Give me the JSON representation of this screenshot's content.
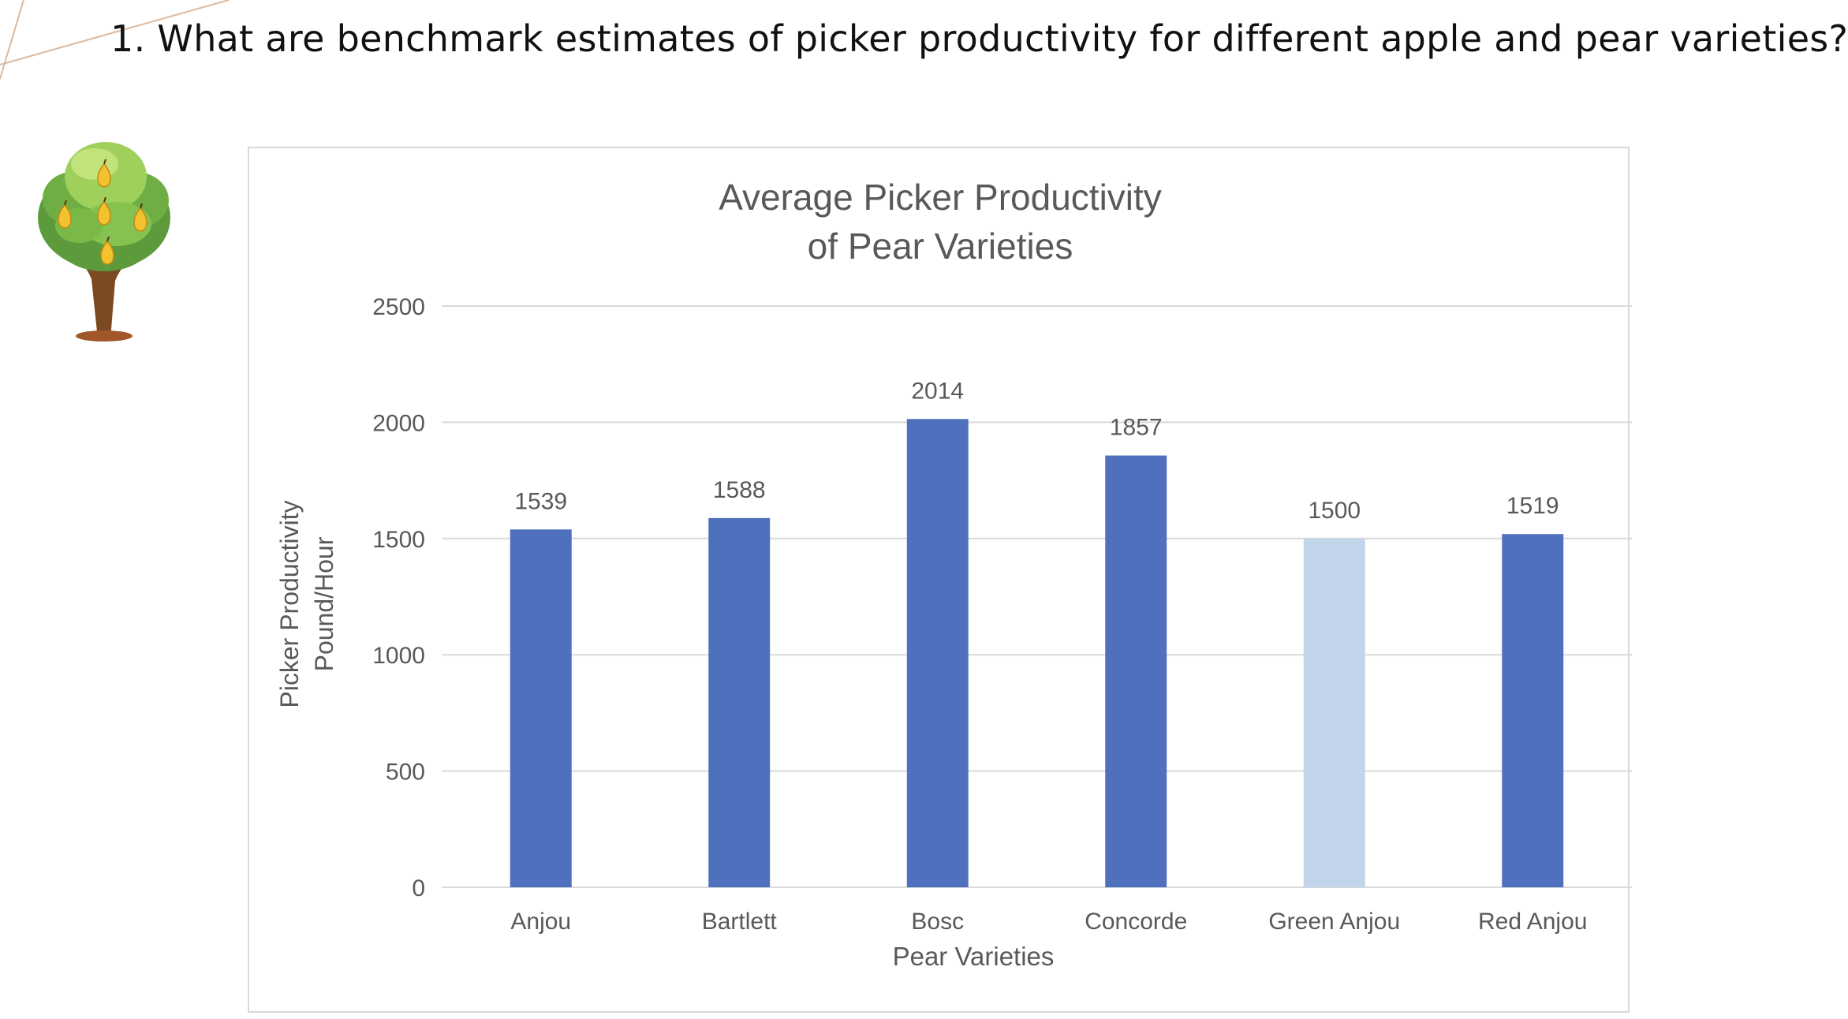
{
  "slide": {
    "heading": "1. What are benchmark estimates of picker productivity for different apple and pear varieties?"
  },
  "colors": {
    "bar_default": "#4f71bd",
    "bar_highlight": "#c2d5ea",
    "gridline": "#d9d9d9",
    "text": "#595959",
    "deco_line": "#dcb99c"
  },
  "icons": {
    "illustration": "pear-tree-icon"
  },
  "chart_data": {
    "type": "bar",
    "title_line1": "Average Picker Productivity",
    "title_line2": "of Pear Varieties",
    "xlabel": "Pear Varieties",
    "ylabel_line1": "Picker Productivity",
    "ylabel_line2": "Pound/Hour",
    "categories": [
      "Anjou",
      "Bartlett",
      "Bosc",
      "Concorde",
      "Green Anjou",
      "Red Anjou"
    ],
    "values": [
      1539,
      1588,
      2014,
      1857,
      1500,
      1519
    ],
    "highlight_category": "Green Anjou",
    "ylim": [
      0,
      2500
    ],
    "yticks": [
      0,
      500,
      1000,
      1500,
      2000,
      2500
    ],
    "grid": true,
    "data_labels": true,
    "legend": "none"
  }
}
